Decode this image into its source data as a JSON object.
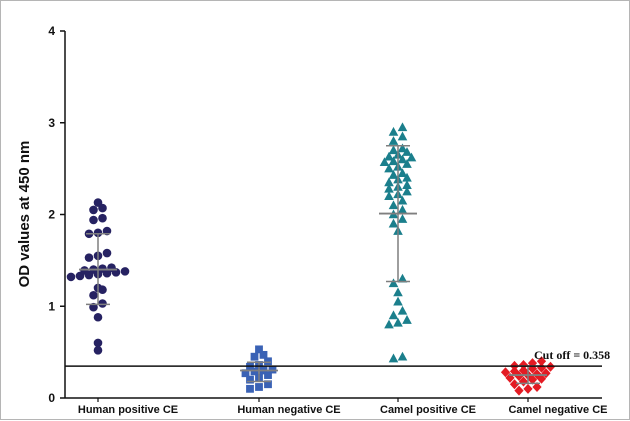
{
  "chart_data": {
    "type": "scatter",
    "title": "",
    "xlabel": "",
    "ylabel": "OD values at 450 nm",
    "ylim": [
      0,
      4
    ],
    "yticks": [
      "0",
      "1",
      "2",
      "3",
      "4"
    ],
    "grid": false,
    "legend": "none",
    "categories": [
      "Human positive CE",
      "Human negative CE",
      "Camel positive CE",
      "Camel negative CE"
    ],
    "series": [
      {
        "marker": "circle",
        "color": "#262262",
        "values": [
          2.13,
          2.07,
          2.05,
          1.96,
          1.94,
          1.82,
          1.8,
          1.79,
          1.58,
          1.55,
          1.53,
          1.42,
          1.41,
          1.4,
          1.39,
          1.38,
          1.37,
          1.36,
          1.35,
          1.34,
          1.33,
          1.32,
          1.2,
          1.18,
          1.12,
          1.03,
          0.99,
          0.88,
          0.6,
          0.52
        ],
        "mean": 1.4,
        "sd_upper": 1.79,
        "sd_lower": 1.02
      },
      {
        "marker": "square",
        "color": "#3a62b5",
        "values": [
          0.53,
          0.47,
          0.45,
          0.4,
          0.36,
          0.34,
          0.31,
          0.3,
          0.29,
          0.27,
          0.25,
          0.22,
          0.2,
          0.15,
          0.12,
          0.1
        ],
        "mean": 0.3,
        "sd_upper": 0.39,
        "sd_lower": 0.18
      },
      {
        "marker": "triangle",
        "color": "#1b7f8c",
        "values": [
          2.95,
          2.9,
          2.85,
          2.8,
          2.72,
          2.7,
          2.68,
          2.65,
          2.63,
          2.62,
          2.6,
          2.58,
          2.57,
          2.55,
          2.52,
          2.5,
          2.45,
          2.43,
          2.4,
          2.38,
          2.35,
          2.32,
          2.3,
          2.28,
          2.25,
          2.22,
          2.2,
          2.15,
          2.1,
          2.05,
          2.0,
          1.95,
          1.9,
          1.82,
          1.3,
          1.25,
          1.15,
          1.05,
          0.95,
          0.9,
          0.85,
          0.82,
          0.8,
          0.45,
          0.43
        ],
        "mean": 2.01,
        "sd_upper": 2.75,
        "sd_lower": 1.27
      },
      {
        "marker": "diamond",
        "color": "#e31b23",
        "values": [
          0.4,
          0.38,
          0.36,
          0.35,
          0.34,
          0.33,
          0.32,
          0.3,
          0.29,
          0.28,
          0.27,
          0.26,
          0.25,
          0.24,
          0.22,
          0.21,
          0.2,
          0.18,
          0.15,
          0.12,
          0.1,
          0.08
        ],
        "mean": 0.25,
        "sd_upper": 0.35,
        "sd_lower": 0.16
      }
    ],
    "cutoff": {
      "value": 0.358,
      "label": "Cut off = 0.358"
    }
  }
}
